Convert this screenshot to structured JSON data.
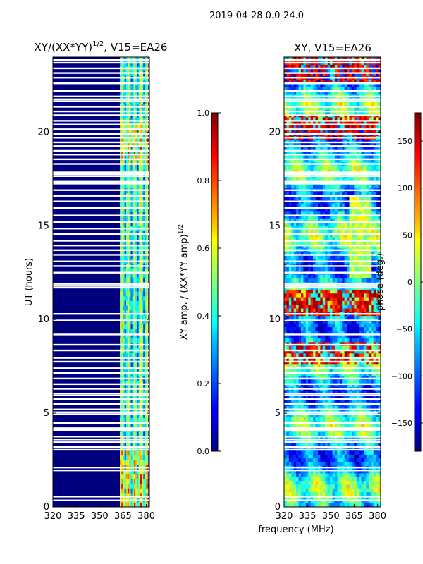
{
  "suptitle": "2019-04-28 0.0-24.0",
  "chart_data": [
    {
      "type": "heatmap",
      "title_main": "XY/(XX*YY)",
      "title_exp": "1/2",
      "title_suffix": ", V15=EA26",
      "xlabel": "",
      "ylabel": "UT (hours)",
      "xlim": [
        320,
        382
      ],
      "ylim": [
        0,
        24
      ],
      "xticks": [
        "320",
        "335",
        "350",
        "365",
        "380"
      ],
      "xtick_values": [
        320,
        335,
        350,
        365,
        380
      ],
      "yticks": [
        "0",
        "5",
        "10",
        "15",
        "20"
      ],
      "ytick_values": [
        0,
        5,
        10,
        15,
        20
      ],
      "signal_band_mhz": [
        363,
        381
      ],
      "colorbar": {
        "label_main": "XY amp. / (XX*YY amp)",
        "label_exp": "1/2",
        "ticks": [
          "0.0",
          "0.2",
          "0.4",
          "0.6",
          "0.8",
          "1.0"
        ],
        "tick_values": [
          0,
          0.2,
          0.4,
          0.6,
          0.8,
          1.0
        ],
        "range": [
          0,
          1
        ]
      }
    },
    {
      "type": "heatmap",
      "title": "XY, V15=EA26",
      "xlabel": "frequency (MHz)",
      "ylabel": "",
      "xlim": [
        320,
        382
      ],
      "ylim": [
        0,
        24
      ],
      "xticks": [
        "320",
        "335",
        "350",
        "365",
        "380"
      ],
      "xtick_values": [
        320,
        335,
        350,
        365,
        380
      ],
      "yticks": [
        "0",
        "5",
        "10",
        "15",
        "20"
      ],
      "ytick_values": [
        0,
        5,
        10,
        15,
        20
      ],
      "colorbar": {
        "label": "phase (deg.)",
        "ticks": [
          "−150",
          "−100",
          "−50",
          "0",
          "50",
          "100",
          "150"
        ],
        "tick_values": [
          -150,
          -100,
          -50,
          0,
          50,
          100,
          150
        ],
        "range": [
          -180,
          180
        ]
      }
    }
  ],
  "flagged_hours": [
    0.35,
    0.55,
    1.95,
    2.1,
    3.05,
    3.2,
    3.45,
    3.6,
    3.75,
    4.1,
    4.2,
    4.45,
    4.5,
    4.95,
    5.05,
    5.2,
    5.5,
    5.75,
    5.95,
    6.05,
    6.3,
    6.55,
    6.85,
    7.15,
    7.4,
    7.75,
    7.95,
    8.35,
    8.65,
    9.2,
    9.95,
    10.3,
    11.7,
    11.8,
    11.9,
    12.5,
    12.85,
    13.1,
    13.45,
    13.7,
    13.95,
    14.2,
    14.55,
    14.85,
    15.2,
    15.55,
    15.95,
    16.3,
    16.6,
    16.9,
    17.25,
    17.35,
    17.65,
    17.75,
    17.85,
    18.3,
    18.55,
    18.8,
    19.0,
    19.25,
    19.45,
    19.7,
    19.9,
    20.15,
    20.4,
    20.6,
    20.9,
    21.1,
    21.35,
    21.65,
    21.75,
    21.9,
    22.2,
    22.6,
    22.9,
    23.15,
    23.4,
    23.7,
    23.85
  ]
}
